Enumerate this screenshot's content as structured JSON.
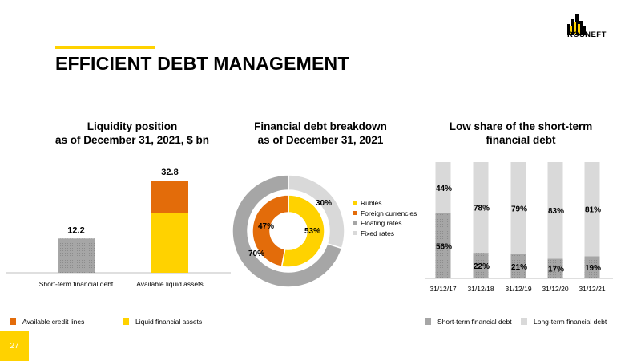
{
  "header": {
    "title": "EFFICIENT DEBT MANAGEMENT",
    "logo_text": "ROSNEFT",
    "page_number": "27"
  },
  "colors": {
    "yellow": "#ffd200",
    "orange": "#e36c0a",
    "gray": "#a6a6a6",
    "light_gray": "#d9d9d9"
  },
  "chart_data": [
    {
      "type": "bar",
      "title": "Liquidity position\nas of December 31, 2021, $ bn",
      "categories": [
        "Short-term financial debt",
        "Available liquid assets"
      ],
      "series": [
        {
          "name": "Short-term financial debt",
          "values": [
            12.2,
            null
          ]
        },
        {
          "name": "Liquid financial assets",
          "values": [
            null,
            21.3
          ]
        },
        {
          "name": "Available credit lines",
          "values": [
            null,
            11.5
          ]
        }
      ],
      "totals": [
        12.2,
        32.8
      ],
      "legend": [
        "Available credit lines",
        "Liquid financial assets"
      ],
      "ylim": [
        0,
        35
      ]
    },
    {
      "type": "pie",
      "title": "Financial debt breakdown\nas of December 31, 2021",
      "inner_ring": [
        {
          "name": "Rubles",
          "value": 53,
          "label": "53%"
        },
        {
          "name": "Foreign currencies",
          "value": 47,
          "label": "47%"
        }
      ],
      "outer_ring": [
        {
          "name": "Fixed rates",
          "value": 30,
          "label": "30%"
        },
        {
          "name": "Floating rates",
          "value": 70,
          "label": "70%"
        }
      ],
      "legend": [
        "Rubles",
        "Foreign currencies",
        "Floating rates",
        "Fixed rates"
      ]
    },
    {
      "type": "bar",
      "stacked": true,
      "title": "Low share of the short-term\nfinancial debt",
      "categories": [
        "31/12/17",
        "31/12/18",
        "31/12/19",
        "31/12/20",
        "31/12/21"
      ],
      "series": [
        {
          "name": "Short-term financial debt",
          "values": [
            56,
            22,
            21,
            17,
            19
          ]
        },
        {
          "name": "Long-term financial debt",
          "values": [
            44,
            78,
            79,
            83,
            81
          ]
        }
      ],
      "ylim": [
        0,
        100
      ],
      "legend": [
        "Short-term financial debt",
        "Long-term financial debt"
      ]
    }
  ]
}
